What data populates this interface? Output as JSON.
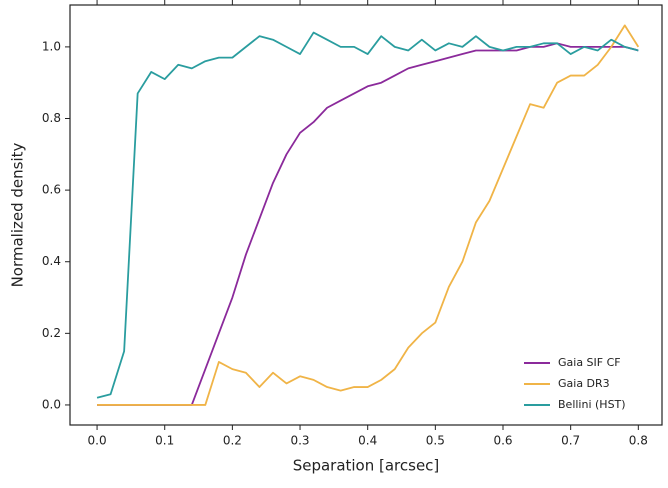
{
  "chart_data": {
    "type": "line",
    "xlabel": "Separation [arcsec]",
    "ylabel": "Normalized density",
    "x": [
      0,
      0.02,
      0.04,
      0.06,
      0.08,
      0.1,
      0.12,
      0.14,
      0.16,
      0.18,
      0.2,
      0.22,
      0.24,
      0.26,
      0.28,
      0.3,
      0.32,
      0.34,
      0.36,
      0.38,
      0.4,
      0.42,
      0.44,
      0.46,
      0.48,
      0.5,
      0.52,
      0.54,
      0.56,
      0.58,
      0.6,
      0.62,
      0.64,
      0.66,
      0.68,
      0.7,
      0.72,
      0.74,
      0.76,
      0.78,
      0.8
    ],
    "series": [
      {
        "name": "Gaia SIF CF",
        "color": "#8b2a9b",
        "values": [
          0,
          0,
          0,
          0,
          0,
          0,
          0,
          0,
          0.1,
          0.2,
          0.3,
          0.42,
          0.52,
          0.62,
          0.7,
          0.76,
          0.79,
          0.83,
          0.85,
          0.87,
          0.89,
          0.9,
          0.92,
          0.94,
          0.95,
          0.96,
          0.97,
          0.98,
          0.99,
          0.99,
          0.99,
          0.99,
          1.0,
          1.0,
          1.01,
          1.0,
          1.0,
          1.0,
          1.0,
          1.0,
          0.99
        ]
      },
      {
        "name": "Gaia DR3",
        "color": "#f0b447",
        "values": [
          0,
          0,
          0,
          0,
          0,
          0,
          0,
          0,
          0,
          0.12,
          0.1,
          0.09,
          0.05,
          0.09,
          0.06,
          0.08,
          0.07,
          0.05,
          0.04,
          0.05,
          0.05,
          0.07,
          0.1,
          0.16,
          0.2,
          0.23,
          0.33,
          0.4,
          0.51,
          0.57,
          0.66,
          0.75,
          0.84,
          0.83,
          0.9,
          0.92,
          0.92,
          0.95,
          1.0,
          1.06,
          1.0
        ]
      },
      {
        "name": "Bellini (HST)",
        "color": "#2a9d9f",
        "values": [
          0.02,
          0.03,
          0.15,
          0.87,
          0.93,
          0.91,
          0.95,
          0.94,
          0.96,
          0.97,
          0.97,
          1.0,
          1.03,
          1.02,
          1.0,
          0.98,
          1.04,
          1.02,
          1.0,
          1.0,
          0.98,
          1.03,
          1.0,
          0.99,
          1.02,
          0.99,
          1.01,
          1.0,
          1.03,
          1.0,
          0.99,
          1.0,
          1.0,
          1.01,
          1.01,
          0.98,
          1.0,
          0.99,
          1.02,
          1.0,
          0.99
        ]
      }
    ],
    "xlim": [
      -0.04,
      0.835
    ],
    "ylim": [
      -0.056,
      1.117
    ],
    "xticks": [
      {
        "value": 0,
        "label": "0.0"
      },
      0.1,
      0.2,
      0.3,
      0.4,
      0.5,
      0.6,
      0.7,
      0.8
    ],
    "yticks": [
      {
        "value": 0,
        "label": "0.0"
      },
      0.2,
      0.4,
      0.6,
      0.8,
      {
        "value": 1,
        "label": "1.0"
      }
    ],
    "legend": "lower right"
  }
}
